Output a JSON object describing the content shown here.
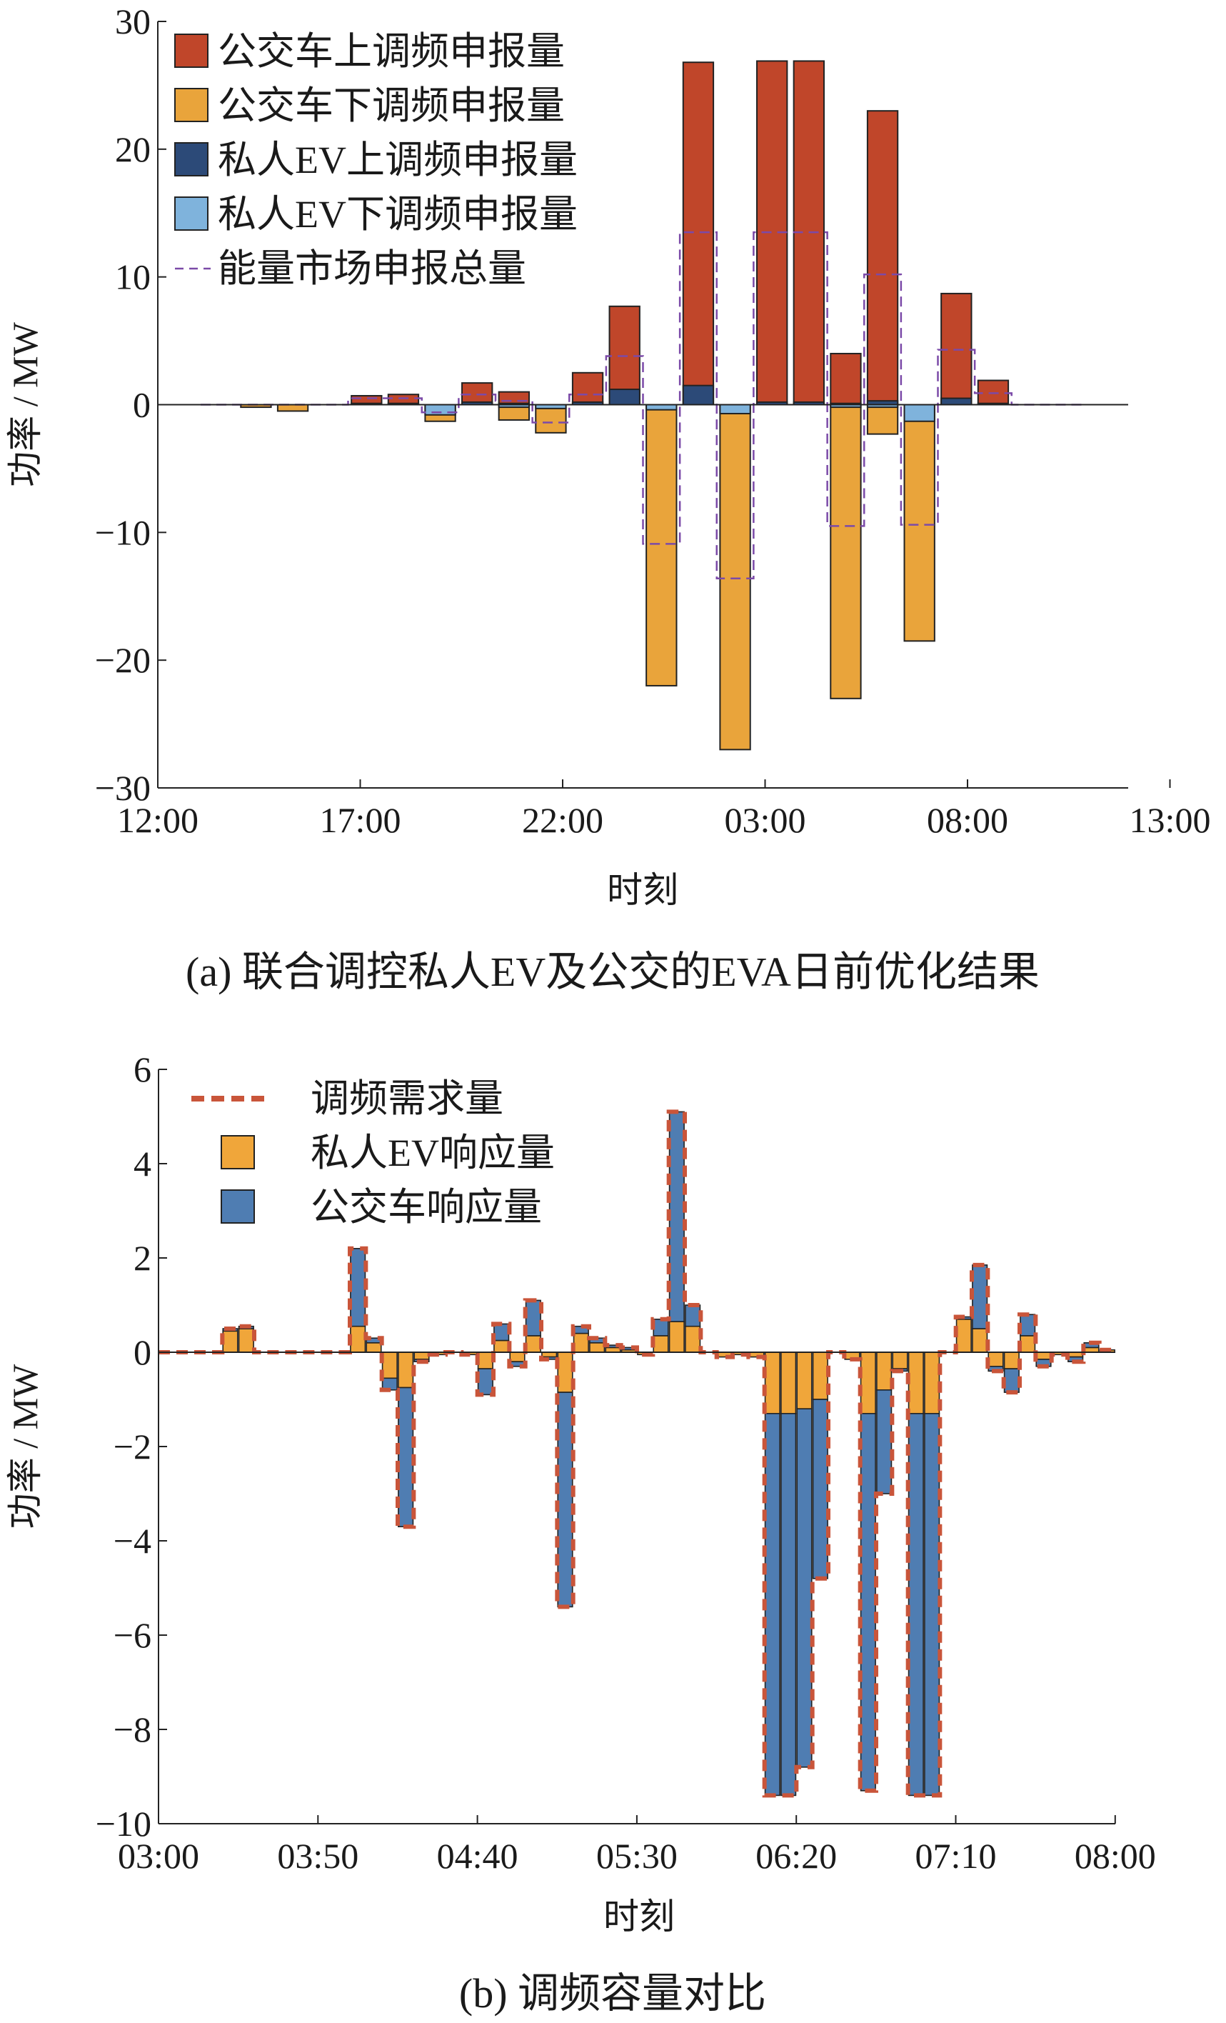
{
  "chart_data": [
    {
      "id": "a",
      "type": "bar",
      "caption": "(a) 联合调控私人EV及公交的EVA日前优化结果",
      "xlabel": "时刻",
      "ylabel": "功率 / MW",
      "ylim": [
        -30,
        30
      ],
      "yticks": [
        -30,
        -20,
        -10,
        0,
        10,
        20,
        30
      ],
      "ytick_labels": [
        "−30",
        "−20",
        "−10",
        "0",
        "10",
        "20",
        "30"
      ],
      "xtick_labels": [
        "12:00",
        "17:00",
        "22:00",
        "03:00",
        "08:00",
        "13:00"
      ],
      "grid": false,
      "legend_position": "top-left",
      "slots": 24,
      "series": [
        {
          "name": "公交车上调频申报量",
          "color": "#c0462a",
          "kind": "bar-up",
          "values": [
            0,
            0,
            0,
            0,
            0.7,
            0.8,
            0,
            1.7,
            1.0,
            0,
            2.5,
            7.7,
            0,
            26.8,
            0,
            26.9,
            26.9,
            4.0,
            23.0,
            0,
            8.7,
            1.9,
            0,
            0
          ]
        },
        {
          "name": "公交车下调频申报量",
          "color": "#e9a43b",
          "kind": "bar-down",
          "values": [
            0,
            -0.2,
            -0.5,
            0,
            0,
            0,
            -1.3,
            0,
            -1.2,
            -2.2,
            0,
            0,
            -22.0,
            0,
            -27.0,
            0,
            0,
            -23.0,
            -2.3,
            -18.5,
            0,
            0,
            0,
            0
          ]
        },
        {
          "name": "私人EV上调频申报量",
          "color": "#2c4a78",
          "kind": "bar-up",
          "values": [
            0,
            0,
            0,
            0,
            0.1,
            0.1,
            0,
            0.2,
            0.1,
            0,
            0.2,
            1.2,
            0,
            1.5,
            0,
            0.2,
            0.2,
            0.1,
            0.3,
            0,
            0.5,
            0.1,
            0,
            0
          ]
        },
        {
          "name": "私人EV下调频申报量",
          "color": "#7fb3dc",
          "kind": "bar-down",
          "values": [
            0,
            0,
            0,
            0,
            0,
            0,
            -0.8,
            0,
            -0.2,
            -0.3,
            0,
            0,
            -0.4,
            0,
            -0.7,
            0,
            0,
            -0.2,
            -0.2,
            -1.3,
            0,
            0,
            0,
            0
          ]
        },
        {
          "name": "能量市场申报总量",
          "color": "#7b4aa8",
          "kind": "line",
          "values": [
            0,
            0,
            0,
            0,
            0.5,
            0.5,
            -0.6,
            0.8,
            0.3,
            -1.4,
            0.8,
            3.8,
            -10.9,
            13.5,
            -13.6,
            13.5,
            13.5,
            -9.5,
            10.2,
            -9.4,
            4.3,
            0.9,
            0,
            0
          ]
        }
      ]
    },
    {
      "id": "b",
      "type": "bar",
      "caption": "(b) 调频容量对比",
      "xlabel": "时刻",
      "ylabel": "功率 / MW",
      "ylim": [
        -10,
        6
      ],
      "yticks": [
        -10,
        -8,
        -6,
        -4,
        -2,
        0,
        2,
        4,
        6
      ],
      "ytick_labels": [
        "−10",
        "−8",
        "−6",
        "−4",
        "−2",
        "0",
        "2",
        "4",
        "6"
      ],
      "xtick_labels": [
        "03:00",
        "03:50",
        "04:40",
        "05:30",
        "06:20",
        "07:10",
        "08:00"
      ],
      "grid": false,
      "legend_position": "top-left",
      "slots": 60,
      "series": [
        {
          "name": "调频需求量",
          "color": "#c9553a",
          "kind": "dashed-step",
          "values": [
            0,
            0,
            0,
            0,
            0.5,
            0.55,
            0,
            0,
            0,
            0,
            0,
            0,
            2.2,
            0.3,
            -0.8,
            -3.7,
            -0.2,
            -0.05,
            0,
            -0.05,
            -0.9,
            0.6,
            -0.3,
            1.1,
            -0.15,
            -5.4,
            0.55,
            0.3,
            0.15,
            0.1,
            -0.05,
            0.7,
            5.1,
            1.0,
            0,
            -0.1,
            -0.05,
            -0.1,
            -9.4,
            -9.4,
            -8.8,
            -4.8,
            0,
            -0.15,
            -9.3,
            -3.0,
            -0.4,
            -9.4,
            -9.4,
            0,
            0.75,
            1.85,
            -0.4,
            -0.85,
            0.8,
            -0.3,
            -0.05,
            -0.2,
            0.2,
            0.05
          ]
        },
        {
          "name": "私人EV响应量",
          "color": "#f0a63a",
          "kind": "bar",
          "values": [
            0,
            0,
            0,
            0,
            0.45,
            0.5,
            0,
            0,
            0,
            0,
            0,
            0,
            0.55,
            0.2,
            -0.55,
            -0.75,
            -0.15,
            -0.05,
            0,
            -0.05,
            -0.35,
            0.25,
            -0.2,
            0.35,
            -0.1,
            -0.85,
            0.4,
            0.2,
            0.1,
            0.05,
            -0.05,
            0.35,
            0.65,
            0.55,
            0,
            -0.1,
            -0.05,
            -0.1,
            -1.3,
            -1.3,
            -1.2,
            -1.0,
            0,
            -0.15,
            -1.3,
            -0.8,
            -0.35,
            -1.3,
            -1.3,
            0,
            0.7,
            0.5,
            -0.3,
            -0.35,
            0.35,
            -0.15,
            -0.05,
            -0.1,
            0.1,
            0.05
          ]
        },
        {
          "name": "公交车响应量",
          "color": "#4f7db2",
          "kind": "bar",
          "values": [
            0,
            0,
            0,
            0,
            0.05,
            0.05,
            0,
            0,
            0,
            0,
            0,
            0,
            1.65,
            0.1,
            -0.25,
            -2.95,
            -0.05,
            0,
            0,
            0,
            -0.55,
            0.35,
            -0.1,
            0.75,
            -0.05,
            -4.55,
            0.15,
            0.1,
            0.05,
            0.05,
            0,
            0.35,
            4.45,
            0.45,
            0,
            0,
            0,
            0,
            -8.1,
            -8.1,
            -7.6,
            -3.8,
            0,
            0,
            -8.0,
            -2.2,
            -0.05,
            -8.1,
            -8.1,
            0,
            0.05,
            1.35,
            -0.1,
            -0.5,
            0.45,
            -0.15,
            0,
            -0.1,
            0.1,
            0
          ]
        }
      ]
    }
  ]
}
